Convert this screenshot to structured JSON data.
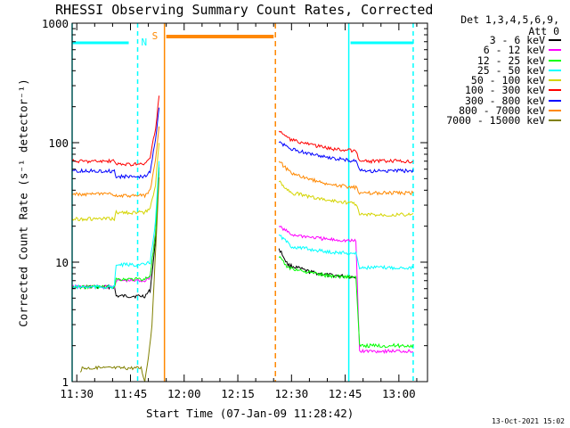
{
  "chart_data": {
    "type": "line",
    "title": "RHESSI Observing Summary Count Rates, Corrected",
    "detectors": "Det 1,3,4,5,6,9,",
    "attenuator": "Att 0",
    "xlabel": "Start Time (07-Jan-09 11:28:42)",
    "ylabel": "Corrected Count Rate (s⁻¹ detector⁻¹)",
    "timestamp": "13-Oct-2021 15:02",
    "xlim": [
      "11:28:42",
      "13:08:00"
    ],
    "ylim": [
      1,
      1000
    ],
    "yscale": "log",
    "x_ticks": [
      "11:30",
      "11:45",
      "12:00",
      "12:15",
      "12:30",
      "12:45",
      "13:00"
    ],
    "y_ticks": [
      "1",
      "10",
      "100",
      "1000"
    ],
    "legend_position": "right",
    "series": [
      {
        "name": "3 - 6 keV",
        "color": "#000000",
        "points": [
          [
            "11:28:42",
            6.2
          ],
          [
            "11:40:30",
            6.2
          ],
          [
            "11:41:00",
            5.2
          ],
          [
            "11:49:00",
            5.2
          ],
          [
            "11:50:30",
            5.8
          ],
          [
            "11:52:00",
            15
          ],
          [
            "11:53:00",
            60
          ],
          [
            "12:26:30",
            13
          ],
          [
            "12:29:00",
            9.5
          ],
          [
            "12:35:00",
            8.3
          ],
          [
            "12:40:00",
            7.8
          ],
          [
            "12:48:00",
            7.5
          ]
        ]
      },
      {
        "name": "6 - 12 keV",
        "color": "#ff00ff",
        "points": [
          [
            "11:28:42",
            6.2
          ],
          [
            "11:40:30",
            6.2
          ],
          [
            "11:41:00",
            7
          ],
          [
            "11:49:00",
            7
          ],
          [
            "11:50:30",
            7.5
          ],
          [
            "11:52:00",
            18
          ],
          [
            "11:53:00",
            65
          ],
          [
            "12:26:30",
            20
          ],
          [
            "12:30:00",
            17
          ],
          [
            "12:40:00",
            15.5
          ],
          [
            "12:48:00",
            15
          ],
          [
            "12:49:00",
            1.8
          ],
          [
            "13:04:00",
            1.8
          ]
        ]
      },
      {
        "name": "12 - 25 keV",
        "color": "#00ff00",
        "points": [
          [
            "11:28:42",
            6.2
          ],
          [
            "11:40:30",
            6.2
          ],
          [
            "11:41:00",
            7.2
          ],
          [
            "11:49:00",
            7.2
          ],
          [
            "11:50:30",
            7.8
          ],
          [
            "11:52:00",
            17
          ],
          [
            "11:53:00",
            62
          ],
          [
            "12:26:30",
            11
          ],
          [
            "12:29:00",
            9
          ],
          [
            "12:35:00",
            8.2
          ],
          [
            "12:40:00",
            7.7
          ],
          [
            "12:48:00",
            7.5
          ],
          [
            "12:49:00",
            2
          ],
          [
            "13:04:00",
            2
          ]
        ]
      },
      {
        "name": "25 - 50 keV",
        "color": "#00ffff",
        "points": [
          [
            "11:28:42",
            6.2
          ],
          [
            "11:40:30",
            6.2
          ],
          [
            "11:41:00",
            9.5
          ],
          [
            "11:49:00",
            9.5
          ],
          [
            "11:50:30",
            10
          ],
          [
            "11:52:00",
            22
          ],
          [
            "11:53:00",
            70
          ],
          [
            "12:26:30",
            17
          ],
          [
            "12:30:00",
            13.5
          ],
          [
            "12:40:00",
            12.2
          ],
          [
            "12:48:00",
            11.8
          ],
          [
            "12:49:00",
            9
          ],
          [
            "13:04:00",
            9
          ]
        ]
      },
      {
        "name": "50 - 100 keV",
        "color": "#d4d400",
        "points": [
          [
            "11:28:42",
            23
          ],
          [
            "11:40:30",
            23
          ],
          [
            "11:41:00",
            26
          ],
          [
            "11:49:00",
            26
          ],
          [
            "11:50:30",
            28
          ],
          [
            "11:52:00",
            45
          ],
          [
            "11:53:00",
            100
          ],
          [
            "12:26:30",
            47
          ],
          [
            "12:30:00",
            38
          ],
          [
            "12:40:00",
            33
          ],
          [
            "12:48:00",
            31
          ],
          [
            "12:49:00",
            25
          ],
          [
            "13:04:00",
            25
          ]
        ]
      },
      {
        "name": "100 - 300 keV",
        "color": "#ff0000",
        "points": [
          [
            "11:28:42",
            70
          ],
          [
            "11:40:30",
            70
          ],
          [
            "11:41:00",
            66
          ],
          [
            "11:49:00",
            66
          ],
          [
            "11:50:30",
            75
          ],
          [
            "11:52:00",
            130
          ],
          [
            "11:53:00",
            250
          ],
          [
            "12:26:30",
            125
          ],
          [
            "12:30:00",
            105
          ],
          [
            "12:40:00",
            90
          ],
          [
            "12:48:00",
            85
          ],
          [
            "12:49:00",
            70
          ],
          [
            "13:04:00",
            70
          ]
        ]
      },
      {
        "name": "300 - 800 keV",
        "color": "#0000ff",
        "points": [
          [
            "11:28:42",
            58
          ],
          [
            "11:40:30",
            58
          ],
          [
            "11:41:00",
            52
          ],
          [
            "11:49:00",
            52
          ],
          [
            "11:50:30",
            58
          ],
          [
            "11:52:00",
            105
          ],
          [
            "11:53:00",
            200
          ],
          [
            "12:26:30",
            100
          ],
          [
            "12:30:00",
            88
          ],
          [
            "12:40:00",
            75
          ],
          [
            "12:48:00",
            70
          ],
          [
            "12:49:00",
            58
          ],
          [
            "13:04:00",
            58
          ]
        ]
      },
      {
        "name": "800 - 7000 keV",
        "color": "#ff8800",
        "points": [
          [
            "11:28:42",
            37
          ],
          [
            "11:40:30",
            37
          ],
          [
            "11:41:00",
            36
          ],
          [
            "11:49:00",
            36
          ],
          [
            "11:50:30",
            40
          ],
          [
            "11:52:00",
            70
          ],
          [
            "11:53:00",
            140
          ],
          [
            "12:26:30",
            70
          ],
          [
            "12:30:00",
            55
          ],
          [
            "12:40:00",
            45
          ],
          [
            "12:48:00",
            42
          ],
          [
            "12:49:00",
            38
          ],
          [
            "13:04:00",
            38
          ]
        ]
      },
      {
        "name": "7000 - 15000 keV",
        "color": "#808000",
        "points": [
          [
            "11:31:00",
            1.2
          ],
          [
            "11:31:30",
            1.3
          ],
          [
            "11:48:00",
            1.3
          ],
          [
            "11:49:00",
            1
          ],
          [
            "11:50:00",
            1.6
          ],
          [
            "11:51:00",
            3
          ],
          [
            "11:53:00",
            50
          ]
        ]
      }
    ],
    "markers": [
      {
        "label": "N",
        "color": "#00ffff",
        "type": "night",
        "segments": [
          [
            "11:28:42",
            "11:47:00"
          ],
          [
            "12:46:00",
            "13:04:00"
          ]
        ]
      },
      {
        "label": "S",
        "color": "#ff8800",
        "type": "saa",
        "segments": [
          [
            "11:54:30",
            "12:25:30"
          ]
        ]
      }
    ]
  }
}
